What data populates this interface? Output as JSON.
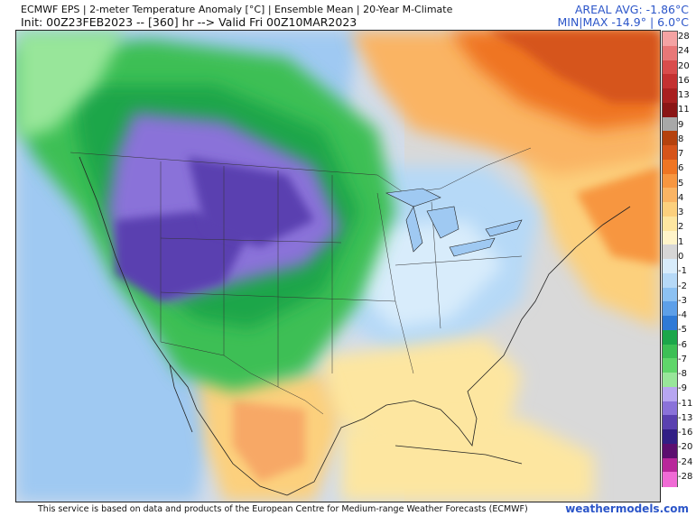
{
  "header": {
    "line1": "ECMWF EPS | 2-meter Temperature Anomaly [°C] | Ensemble Mean | 20-Year M-Climate",
    "line2": "Init: 00Z23FEB2023 -- [360] hr --> Valid Fri 00Z10MAR2023",
    "areal_avg": "AREAL AVG: -1.86°C",
    "min_max": "MIN|MAX -14.9° | 6.0°C"
  },
  "colorbar": {
    "labels": [
      "28",
      "24",
      "20",
      "16",
      "13",
      "11",
      "9",
      "8",
      "7",
      "6",
      "5",
      "4",
      "3",
      "2",
      "1",
      "0",
      "-1",
      "-2",
      "-3",
      "-4",
      "-5",
      "-6",
      "-7",
      "-8",
      "-9",
      "-11",
      "-13",
      "-16",
      "-20",
      "-24",
      "-28"
    ],
    "colors": [
      "#f4a3a3",
      "#e87777",
      "#d94c4c",
      "#c43131",
      "#a92020",
      "#8a1515",
      "#a8a8a8",
      "#b5420e",
      "#d6541a",
      "#ef7523",
      "#f79640",
      "#fab463",
      "#fcd07d",
      "#fde6a0",
      "#fff4c9",
      "#d6d6d6",
      "#d8ecfb",
      "#b6d9f7",
      "#8cc1f2",
      "#5d9fe8",
      "#2f7ad6",
      "#1ba64a",
      "#3cbf55",
      "#5fd66a",
      "#98e69a",
      "#b7a6f0",
      "#8a72d9",
      "#5a41b0",
      "#321f85",
      "#5c0f6f",
      "#b8279a",
      "#f06bd5"
    ]
  },
  "colors": {
    "land_bg": "#d4d4d4",
    "ocean_bg": "#d8d8d8",
    "warm": "#f7a866",
    "cold": "#6b4fc8",
    "accent": "#2c56c9"
  },
  "footer": {
    "credit": "This service is based on data and products of the European Centre for Medium-range Weather Forecasts (ECMWF)",
    "brand": "weathermodels.com"
  }
}
